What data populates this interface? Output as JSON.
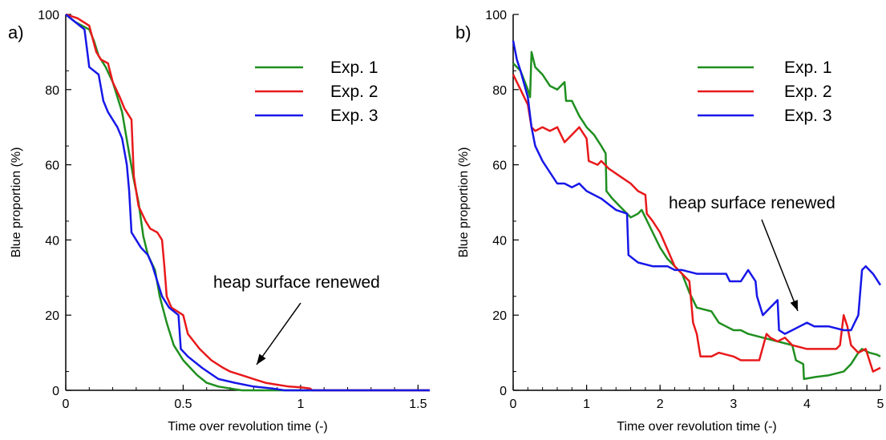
{
  "figure": {
    "panel_labels": [
      "a)",
      "b)"
    ]
  },
  "chart_data": [
    {
      "panel": "a)",
      "type": "line",
      "xlabel": "Time over revolution time (-)",
      "ylabel": "Blue proportion (%)",
      "xlim": [
        0,
        1.55
      ],
      "ylim": [
        0,
        100
      ],
      "xticks": [
        0,
        0.5,
        1,
        1.5
      ],
      "xtick_labels": [
        "0",
        "0.5",
        "1",
        "1.5"
      ],
      "yticks": [
        0,
        20,
        40,
        60,
        80,
        100
      ],
      "ytick_labels": [
        "0",
        "20",
        "40",
        "60",
        "80",
        "100"
      ],
      "legend": "top-right",
      "annotation": "heap surface renewed",
      "series": [
        {
          "name": "Exp. 1",
          "color": "#1f8f1f",
          "points": [
            [
              0,
              100
            ],
            [
              0.04,
              98
            ],
            [
              0.1,
              96
            ],
            [
              0.12,
              93
            ],
            [
              0.14,
              89
            ],
            [
              0.17,
              86
            ],
            [
              0.2,
              82
            ],
            [
              0.24,
              74
            ],
            [
              0.27,
              63
            ],
            [
              0.29,
              56
            ],
            [
              0.31,
              50
            ],
            [
              0.33,
              41
            ],
            [
              0.35,
              36
            ],
            [
              0.38,
              32
            ],
            [
              0.4,
              25
            ],
            [
              0.43,
              18
            ],
            [
              0.46,
              12
            ],
            [
              0.5,
              8
            ],
            [
              0.53,
              6
            ],
            [
              0.56,
              4
            ],
            [
              0.58,
              3
            ],
            [
              0.6,
              2
            ],
            [
              0.65,
              1
            ],
            [
              0.7,
              0.5
            ],
            [
              0.75,
              0
            ],
            [
              1.55,
              0
            ]
          ]
        },
        {
          "name": "Exp. 2",
          "color": "#e8191b",
          "points": [
            [
              0,
              100
            ],
            [
              0.05,
              99
            ],
            [
              0.1,
              97
            ],
            [
              0.13,
              90
            ],
            [
              0.15,
              88
            ],
            [
              0.18,
              87
            ],
            [
              0.2,
              82
            ],
            [
              0.23,
              78
            ],
            [
              0.25,
              75
            ],
            [
              0.28,
              72
            ],
            [
              0.29,
              57
            ],
            [
              0.31,
              49
            ],
            [
              0.34,
              45
            ],
            [
              0.36,
              43
            ],
            [
              0.39,
              42
            ],
            [
              0.41,
              40
            ],
            [
              0.42,
              33
            ],
            [
              0.43,
              25
            ],
            [
              0.45,
              22
            ],
            [
              0.5,
              20
            ],
            [
              0.52,
              15
            ],
            [
              0.57,
              11
            ],
            [
              0.62,
              8
            ],
            [
              0.67,
              6
            ],
            [
              0.7,
              5
            ],
            [
              0.75,
              4
            ],
            [
              0.8,
              3
            ],
            [
              0.85,
              2
            ],
            [
              0.9,
              1.5
            ],
            [
              0.95,
              1
            ],
            [
              1,
              0.8
            ],
            [
              1.04,
              0.5
            ],
            [
              1.05,
              0
            ],
            [
              1.55,
              0
            ]
          ]
        },
        {
          "name": "Exp. 3",
          "color": "#1717e8",
          "points": [
            [
              0,
              100
            ],
            [
              0.04,
              98
            ],
            [
              0.08,
              96
            ],
            [
              0.1,
              86
            ],
            [
              0.14,
              84
            ],
            [
              0.16,
              77
            ],
            [
              0.18,
              74
            ],
            [
              0.22,
              70
            ],
            [
              0.24,
              67
            ],
            [
              0.26,
              60
            ],
            [
              0.27,
              53
            ],
            [
              0.28,
              42
            ],
            [
              0.3,
              40
            ],
            [
              0.32,
              38
            ],
            [
              0.35,
              36
            ],
            [
              0.37,
              33
            ],
            [
              0.39,
              29
            ],
            [
              0.41,
              25
            ],
            [
              0.44,
              22
            ],
            [
              0.48,
              20
            ],
            [
              0.49,
              11
            ],
            [
              0.52,
              9
            ],
            [
              0.58,
              6
            ],
            [
              0.65,
              3
            ],
            [
              0.72,
              2
            ],
            [
              0.8,
              1
            ],
            [
              0.88,
              0.5
            ],
            [
              0.93,
              0
            ],
            [
              1.55,
              0
            ]
          ]
        }
      ]
    },
    {
      "panel": "b)",
      "type": "line",
      "xlabel": "Time over revolution time (-)",
      "ylabel": "Blue proportion (%)",
      "xlim": [
        0,
        5
      ],
      "ylim": [
        0,
        100
      ],
      "xticks": [
        0,
        1,
        2,
        3,
        4,
        5
      ],
      "xtick_labels": [
        "0",
        "1",
        "2",
        "3",
        "4",
        "5"
      ],
      "yticks": [
        0,
        20,
        40,
        60,
        80,
        100
      ],
      "ytick_labels": [
        "0",
        "20",
        "40",
        "60",
        "80",
        "100"
      ],
      "legend": "top-right",
      "annotation": "heap surface renewed",
      "series": [
        {
          "name": "Exp. 1",
          "color": "#1f8f1f",
          "points": [
            [
              0,
              87
            ],
            [
              0.1,
              85
            ],
            [
              0.2,
              80
            ],
            [
              0.23,
              78
            ],
            [
              0.25,
              90
            ],
            [
              0.3,
              86
            ],
            [
              0.4,
              84
            ],
            [
              0.5,
              81
            ],
            [
              0.6,
              80
            ],
            [
              0.7,
              82
            ],
            [
              0.72,
              77
            ],
            [
              0.8,
              77
            ],
            [
              0.9,
              73
            ],
            [
              1,
              70
            ],
            [
              1.1,
              68
            ],
            [
              1.2,
              65
            ],
            [
              1.26,
              63
            ],
            [
              1.27,
              53
            ],
            [
              1.35,
              51
            ],
            [
              1.5,
              48
            ],
            [
              1.6,
              46
            ],
            [
              1.7,
              47
            ],
            [
              1.75,
              48
            ],
            [
              1.8,
              46
            ],
            [
              1.9,
              42
            ],
            [
              2,
              38
            ],
            [
              2.1,
              35
            ],
            [
              2.2,
              33
            ],
            [
              2.3,
              31
            ],
            [
              2.4,
              26
            ],
            [
              2.5,
              22
            ],
            [
              2.7,
              21
            ],
            [
              2.8,
              18
            ],
            [
              2.9,
              17
            ],
            [
              3,
              16
            ],
            [
              3.1,
              16
            ],
            [
              3.2,
              15
            ],
            [
              3.4,
              14
            ],
            [
              3.6,
              13
            ],
            [
              3.8,
              12
            ],
            [
              3.85,
              8
            ],
            [
              3.95,
              7
            ],
            [
              3.96,
              3
            ],
            [
              4.1,
              3.5
            ],
            [
              4.3,
              4
            ],
            [
              4.5,
              5
            ],
            [
              4.6,
              7
            ],
            [
              4.7,
              10
            ],
            [
              4.75,
              11
            ],
            [
              4.85,
              10
            ],
            [
              4.95,
              9.5
            ],
            [
              5,
              9
            ]
          ]
        },
        {
          "name": "Exp. 2",
          "color": "#e8191b",
          "points": [
            [
              0,
              84
            ],
            [
              0.1,
              80
            ],
            [
              0.2,
              76
            ],
            [
              0.25,
              70
            ],
            [
              0.3,
              69
            ],
            [
              0.4,
              70
            ],
            [
              0.5,
              69
            ],
            [
              0.6,
              70
            ],
            [
              0.7,
              66
            ],
            [
              0.8,
              68
            ],
            [
              0.9,
              70
            ],
            [
              1,
              67
            ],
            [
              1.03,
              61
            ],
            [
              1.15,
              60
            ],
            [
              1.2,
              61
            ],
            [
              1.3,
              59
            ],
            [
              1.45,
              57
            ],
            [
              1.6,
              55
            ],
            [
              1.7,
              53
            ],
            [
              1.8,
              52
            ],
            [
              1.82,
              47
            ],
            [
              1.9,
              45
            ],
            [
              2,
              42
            ],
            [
              2.2,
              33
            ],
            [
              2.3,
              31
            ],
            [
              2.4,
              29
            ],
            [
              2.45,
              18
            ],
            [
              2.5,
              15
            ],
            [
              2.55,
              9
            ],
            [
              2.7,
              9
            ],
            [
              2.8,
              10
            ],
            [
              3,
              9
            ],
            [
              3.1,
              8
            ],
            [
              3.2,
              8
            ],
            [
              3.35,
              8
            ],
            [
              3.45,
              15
            ],
            [
              3.5,
              14
            ],
            [
              3.6,
              13
            ],
            [
              3.7,
              14
            ],
            [
              3.8,
              12
            ],
            [
              4,
              11
            ],
            [
              4.2,
              11
            ],
            [
              4.4,
              11
            ],
            [
              4.45,
              12
            ],
            [
              4.5,
              20
            ],
            [
              4.55,
              17
            ],
            [
              4.6,
              12
            ],
            [
              4.7,
              10
            ],
            [
              4.8,
              11
            ],
            [
              4.9,
              5
            ],
            [
              5,
              6
            ]
          ]
        },
        {
          "name": "Exp. 3",
          "color": "#1717e8",
          "points": [
            [
              0,
              93
            ],
            [
              0.05,
              88
            ],
            [
              0.1,
              85
            ],
            [
              0.2,
              78
            ],
            [
              0.25,
              70
            ],
            [
              0.3,
              65
            ],
            [
              0.4,
              61
            ],
            [
              0.5,
              58
            ],
            [
              0.6,
              55
            ],
            [
              0.7,
              55
            ],
            [
              0.8,
              54
            ],
            [
              0.9,
              55
            ],
            [
              1,
              53
            ],
            [
              1.2,
              51
            ],
            [
              1.4,
              48
            ],
            [
              1.55,
              47
            ],
            [
              1.57,
              36
            ],
            [
              1.7,
              34
            ],
            [
              1.9,
              33
            ],
            [
              2.1,
              33
            ],
            [
              2.2,
              32
            ],
            [
              2.3,
              32
            ],
            [
              2.5,
              31
            ],
            [
              2.7,
              31
            ],
            [
              2.9,
              31
            ],
            [
              2.95,
              29
            ],
            [
              3.1,
              29
            ],
            [
              3.2,
              32
            ],
            [
              3.3,
              29
            ],
            [
              3.32,
              25
            ],
            [
              3.4,
              20
            ],
            [
              3.5,
              22
            ],
            [
              3.6,
              24
            ],
            [
              3.62,
              16
            ],
            [
              3.7,
              15
            ],
            [
              3.8,
              16
            ],
            [
              3.9,
              17
            ],
            [
              4,
              18
            ],
            [
              4.1,
              17
            ],
            [
              4.2,
              17
            ],
            [
              4.3,
              17
            ],
            [
              4.5,
              16
            ],
            [
              4.6,
              16
            ],
            [
              4.65,
              18
            ],
            [
              4.7,
              20
            ],
            [
              4.75,
              32
            ],
            [
              4.8,
              33
            ],
            [
              4.9,
              31
            ],
            [
              5,
              28
            ]
          ]
        }
      ]
    }
  ]
}
